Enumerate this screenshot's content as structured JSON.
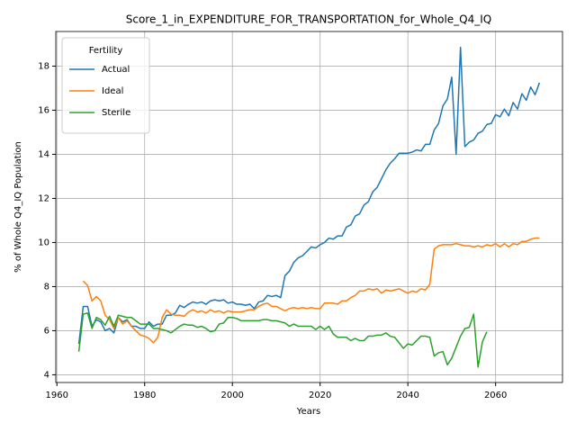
{
  "chart_data": {
    "type": "line",
    "title": "Score_1_in_EXPENDITURE_FOR_TRANSPORTATION_for_Whole_Q4_IQ",
    "xlabel": "Years",
    "ylabel": "% of Whole Q4_IQ Population",
    "legend_title": "Fertility",
    "legend": "upper left",
    "grid": true,
    "xlim": [
      1959.75,
      2075.25
    ],
    "xticks": [
      1960,
      1980,
      2000,
      2020,
      2040,
      2060
    ],
    "ylim": [
      3.65,
      19.57
    ],
    "yticks": [
      4,
      6,
      8,
      10,
      12,
      14,
      16,
      18
    ],
    "x": [
      1965,
      1966,
      1967,
      1968,
      1969,
      1970,
      1971,
      1972,
      1973,
      1974,
      1975,
      1976,
      1977,
      1978,
      1979,
      1980,
      1981,
      1982,
      1983,
      1984,
      1985,
      1986,
      1987,
      1988,
      1989,
      1990,
      1991,
      1992,
      1993,
      1994,
      1995,
      1996,
      1997,
      1998,
      1999,
      2000,
      2001,
      2002,
      2003,
      2004,
      2005,
      2006,
      2007,
      2008,
      2009,
      2010,
      2011,
      2012,
      2013,
      2014,
      2015,
      2016,
      2017,
      2018,
      2019,
      2020,
      2021,
      2022,
      2023,
      2024,
      2025,
      2026,
      2027,
      2028,
      2029,
      2030,
      2031,
      2032,
      2033,
      2034,
      2035,
      2036,
      2037,
      2038,
      2039,
      2040,
      2041,
      2042,
      2043,
      2044,
      2045,
      2046,
      2047,
      2048,
      2049,
      2050,
      2051,
      2052,
      2053,
      2054,
      2055,
      2056,
      2057,
      2058,
      2059,
      2060,
      2061,
      2062,
      2063,
      2064,
      2065,
      2066,
      2067,
      2068,
      2069,
      2070
    ],
    "series": [
      {
        "name": "Actual",
        "color": "#1f77b4",
        "values": [
          5.4,
          7.1,
          7.1,
          6.2,
          6.5,
          6.4,
          6.0,
          6.1,
          5.9,
          6.6,
          6.4,
          6.5,
          6.2,
          6.2,
          6.1,
          6.1,
          6.4,
          6.2,
          6.3,
          6.3,
          6.7,
          6.7,
          6.8,
          7.15,
          7.05,
          7.2,
          7.3,
          7.25,
          7.3,
          7.2,
          7.35,
          7.4,
          7.35,
          7.4,
          7.25,
          7.3,
          7.2,
          7.2,
          7.15,
          7.2,
          7.0,
          7.3,
          7.35,
          7.6,
          7.55,
          7.6,
          7.5,
          8.5,
          8.7,
          9.1,
          9.3,
          9.4,
          9.6,
          9.8,
          9.75,
          9.9,
          10.0,
          10.2,
          10.15,
          10.3,
          10.3,
          10.7,
          10.8,
          11.2,
          11.3,
          11.7,
          11.85,
          12.3,
          12.5,
          12.9,
          13.3,
          13.6,
          13.8,
          14.05,
          14.05,
          14.05,
          14.1,
          14.2,
          14.15,
          14.45,
          14.45,
          15.1,
          15.4,
          16.2,
          16.5,
          17.5,
          14.0,
          18.85,
          14.35,
          14.55,
          14.65,
          14.95,
          15.05,
          15.35,
          15.4,
          15.8,
          15.7,
          16.05,
          15.75,
          16.35,
          16.05,
          16.75,
          16.45,
          17.05,
          16.7,
          17.25
        ]
      },
      {
        "name": "Ideal",
        "color": "#ff7f0e",
        "values": [
          null,
          8.25,
          8.05,
          7.35,
          7.55,
          7.35,
          6.7,
          6.5,
          6.1,
          6.6,
          6.3,
          6.45,
          6.2,
          6.0,
          5.8,
          5.75,
          5.65,
          5.45,
          5.7,
          6.6,
          6.95,
          6.75,
          6.7,
          6.7,
          6.65,
          6.85,
          6.95,
          6.85,
          6.9,
          6.8,
          6.95,
          6.85,
          6.9,
          6.8,
          6.9,
          6.85,
          6.85,
          6.85,
          6.9,
          6.95,
          6.95,
          7.1,
          7.2,
          7.25,
          7.1,
          7.1,
          7.0,
          6.9,
          7.0,
          7.05,
          7.0,
          7.05,
          7.0,
          7.05,
          7.0,
          7.0,
          7.25,
          7.25,
          7.25,
          7.2,
          7.35,
          7.35,
          7.5,
          7.6,
          7.8,
          7.8,
          7.9,
          7.85,
          7.9,
          7.7,
          7.85,
          7.8,
          7.85,
          7.9,
          7.8,
          7.7,
          7.8,
          7.75,
          7.9,
          7.85,
          8.1,
          9.7,
          9.85,
          9.9,
          9.9,
          9.9,
          9.95,
          9.9,
          9.85,
          9.85,
          9.8,
          9.85,
          9.8,
          9.9,
          9.85,
          9.95,
          9.8,
          9.95,
          9.8,
          9.95,
          9.9,
          10.05,
          10.05,
          10.15,
          10.2,
          10.2
        ]
      },
      {
        "name": "Sterile",
        "color": "#2ca02c",
        "values": [
          5.05,
          6.75,
          6.8,
          6.1,
          6.6,
          6.5,
          6.25,
          6.65,
          6.2,
          6.7,
          6.65,
          6.6,
          6.6,
          6.45,
          6.3,
          6.3,
          6.3,
          6.1,
          6.1,
          6.05,
          6.0,
          5.9,
          6.05,
          6.2,
          6.3,
          6.25,
          6.25,
          6.15,
          6.2,
          6.1,
          5.95,
          6.0,
          6.3,
          6.35,
          6.6,
          6.6,
          6.55,
          6.45,
          6.45,
          6.45,
          6.45,
          6.45,
          6.5,
          6.5,
          6.45,
          6.45,
          6.4,
          6.35,
          6.2,
          6.3,
          6.2,
          6.2,
          6.2,
          6.2,
          6.05,
          6.2,
          6.05,
          6.2,
          5.85,
          5.7,
          5.7,
          5.7,
          5.55,
          5.65,
          5.55,
          5.55,
          5.75,
          5.75,
          5.8,
          5.8,
          5.9,
          5.75,
          5.7,
          5.45,
          5.2,
          5.4,
          5.35,
          5.55,
          5.75,
          5.75,
          5.7,
          4.85,
          5.0,
          5.05,
          4.45,
          4.75,
          5.25,
          5.75,
          6.1,
          6.15,
          6.75,
          4.35,
          5.5,
          5.95,
          null,
          null,
          null,
          null,
          null,
          null,
          null,
          null,
          null,
          null,
          null,
          null
        ]
      }
    ]
  }
}
